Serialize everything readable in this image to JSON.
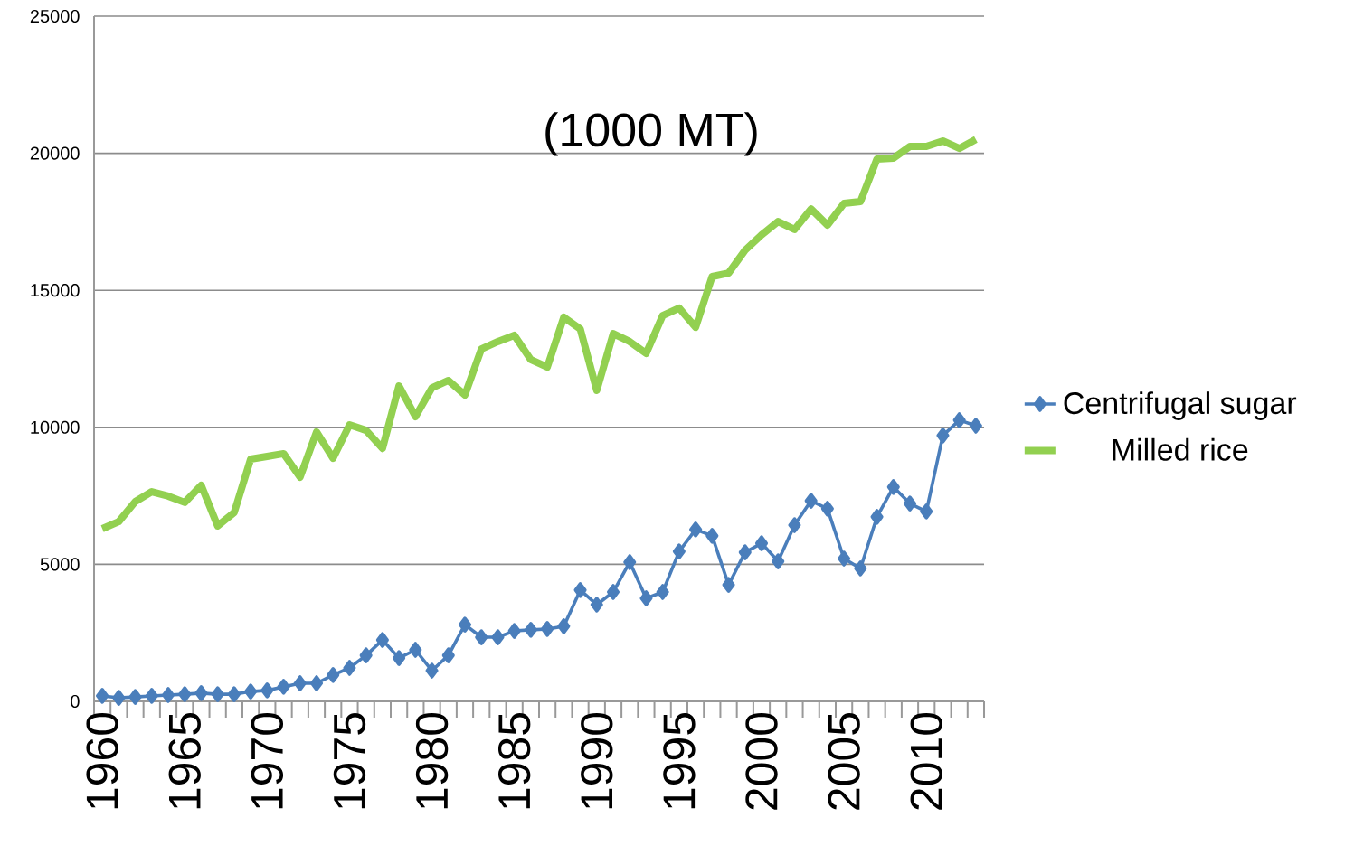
{
  "chart_data": {
    "type": "line",
    "title": "(1000 MT)",
    "categories": [
      "1960",
      null,
      null,
      null,
      null,
      "1965",
      null,
      null,
      null,
      null,
      "1970",
      null,
      null,
      null,
      null,
      "1975",
      null,
      null,
      null,
      null,
      "1980",
      null,
      null,
      null,
      null,
      "1985",
      null,
      null,
      null,
      null,
      "1990",
      null,
      null,
      null,
      null,
      "1995",
      null,
      null,
      null,
      null,
      "2000",
      null,
      null,
      null,
      null,
      "2005",
      null,
      null,
      null,
      null,
      "2010",
      null,
      null,
      null
    ],
    "series": [
      {
        "name": "Centrifugal sugar",
        "color": "#4a7ebb",
        "marker": "diamond",
        "values": [
          200,
          130,
          160,
          200,
          230,
          260,
          300,
          260,
          260,
          360,
          400,
          530,
          660,
          660,
          960,
          1220,
          1680,
          2240,
          1580,
          1880,
          1120,
          1680,
          2800,
          2340,
          2340,
          2570,
          2610,
          2640,
          2740,
          4060,
          3530,
          3990,
          5080,
          3760,
          3990,
          5470,
          6270,
          6040,
          4250,
          5440,
          5770,
          5110,
          6430,
          7320,
          7030,
          5210,
          4850,
          6730,
          7820,
          7220,
          6930,
          9700,
          10260,
          10060
        ]
      },
      {
        "name": "Milled rice",
        "color": "#92d050",
        "marker": "none",
        "values": [
          6300,
          6560,
          7290,
          7650,
          7490,
          7260,
          7880,
          6400,
          6890,
          8840,
          8940,
          9040,
          8180,
          9830,
          8870,
          10090,
          9890,
          9230,
          11510,
          10390,
          11440,
          11710,
          11180,
          12860,
          13130,
          13360,
          12470,
          12200,
          14020,
          13590,
          11350,
          13420,
          13130,
          12700,
          14080,
          14350,
          13650,
          15500,
          15630,
          16460,
          17020,
          17510,
          17220,
          17970,
          17380,
          18170,
          18240,
          19790,
          19820,
          20250,
          20250,
          20450,
          20180,
          20510
        ]
      }
    ],
    "ylim": [
      0,
      25000
    ],
    "yticks": [
      0,
      5000,
      10000,
      15000,
      20000,
      25000
    ],
    "grid": "y",
    "legend": "right"
  }
}
